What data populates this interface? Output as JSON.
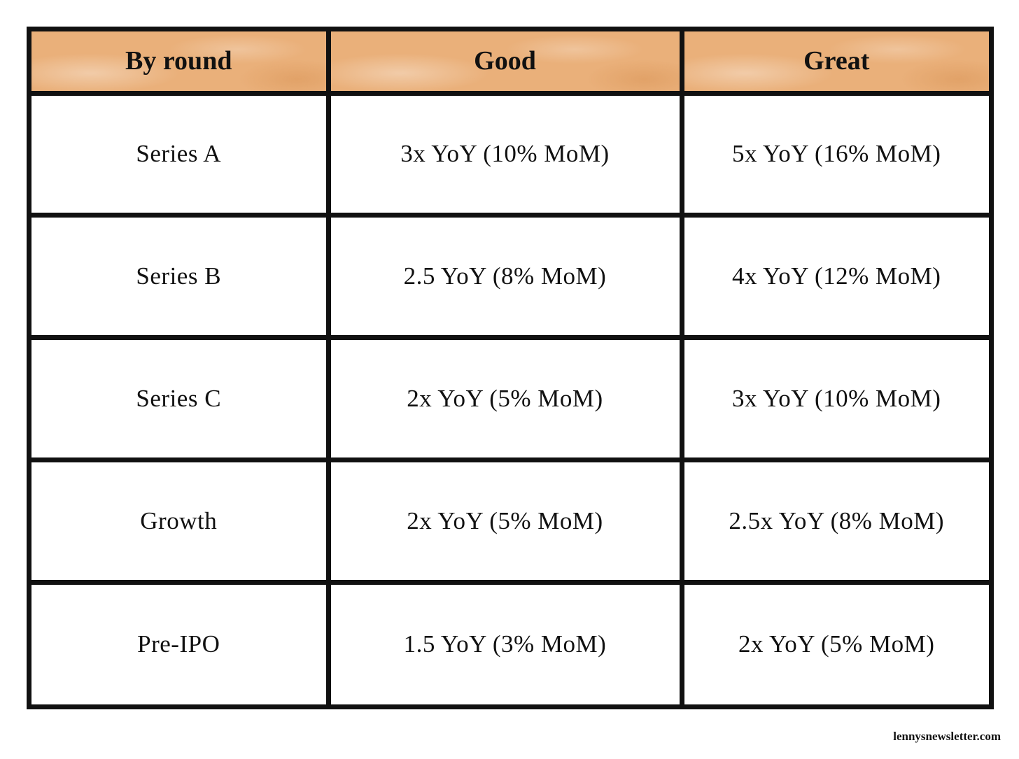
{
  "table": {
    "headers": [
      "By round",
      "Good",
      "Great"
    ],
    "rows": [
      [
        "Series A",
        "3x YoY (10% MoM)",
        "5x YoY (16% MoM)"
      ],
      [
        "Series B",
        "2.5 YoY (8% MoM)",
        "4x YoY (12% MoM)"
      ],
      [
        "Series C",
        "2x YoY (5% MoM)",
        "3x YoY (10% MoM)"
      ],
      [
        "Growth",
        "2x YoY (5% MoM)",
        "2.5x YoY (8% MoM)"
      ],
      [
        "Pre-IPO",
        "1.5 YoY (3% MoM)",
        "2x YoY (5% MoM)"
      ]
    ]
  },
  "watermark": "lennysnewsletter.com",
  "colors": {
    "header_background": "#eab07a",
    "border": "#111111"
  }
}
